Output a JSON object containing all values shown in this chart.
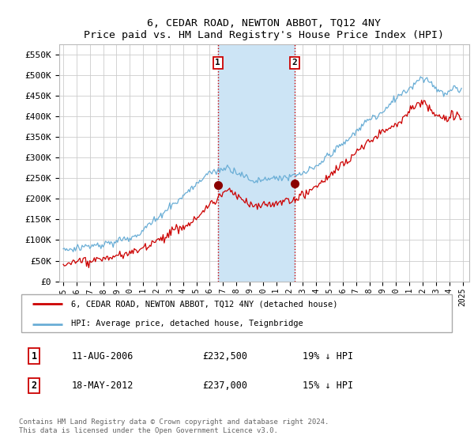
{
  "title": "6, CEDAR ROAD, NEWTON ABBOT, TQ12 4NY",
  "subtitle": "Price paid vs. HM Land Registry's House Price Index (HPI)",
  "ylim": [
    0,
    575000
  ],
  "yticks": [
    0,
    50000,
    100000,
    150000,
    200000,
    250000,
    300000,
    350000,
    400000,
    450000,
    500000,
    550000
  ],
  "ytick_labels": [
    "£0",
    "£50K",
    "£100K",
    "£150K",
    "£200K",
    "£250K",
    "£300K",
    "£350K",
    "£400K",
    "£450K",
    "£500K",
    "£550K"
  ],
  "transaction1": {
    "date_num": 2006.615,
    "price": 232500,
    "label": "1",
    "date_str": "11-AUG-2006",
    "pct": "19% ↓ HPI"
  },
  "transaction2": {
    "date_num": 2012.372,
    "price": 237000,
    "label": "2",
    "date_str": "18-MAY-2012",
    "pct": "15% ↓ HPI"
  },
  "shade_color": "#cce4f5",
  "vline_color": "#cc0000",
  "red_line_color": "#cc0000",
  "blue_line_color": "#6aaed6",
  "legend_label_red": "6, CEDAR ROAD, NEWTON ABBOT, TQ12 4NY (detached house)",
  "legend_label_blue": "HPI: Average price, detached house, Teignbridge",
  "footer": "Contains HM Land Registry data © Crown copyright and database right 2024.\nThis data is licensed under the Open Government Licence v3.0.",
  "table_rows": [
    {
      "num": "1",
      "date": "11-AUG-2006",
      "price": "£232,500",
      "pct": "19% ↓ HPI"
    },
    {
      "num": "2",
      "date": "18-MAY-2012",
      "price": "£237,000",
      "pct": "15% ↓ HPI"
    }
  ],
  "xlim_left": 1994.7,
  "xlim_right": 2025.5
}
